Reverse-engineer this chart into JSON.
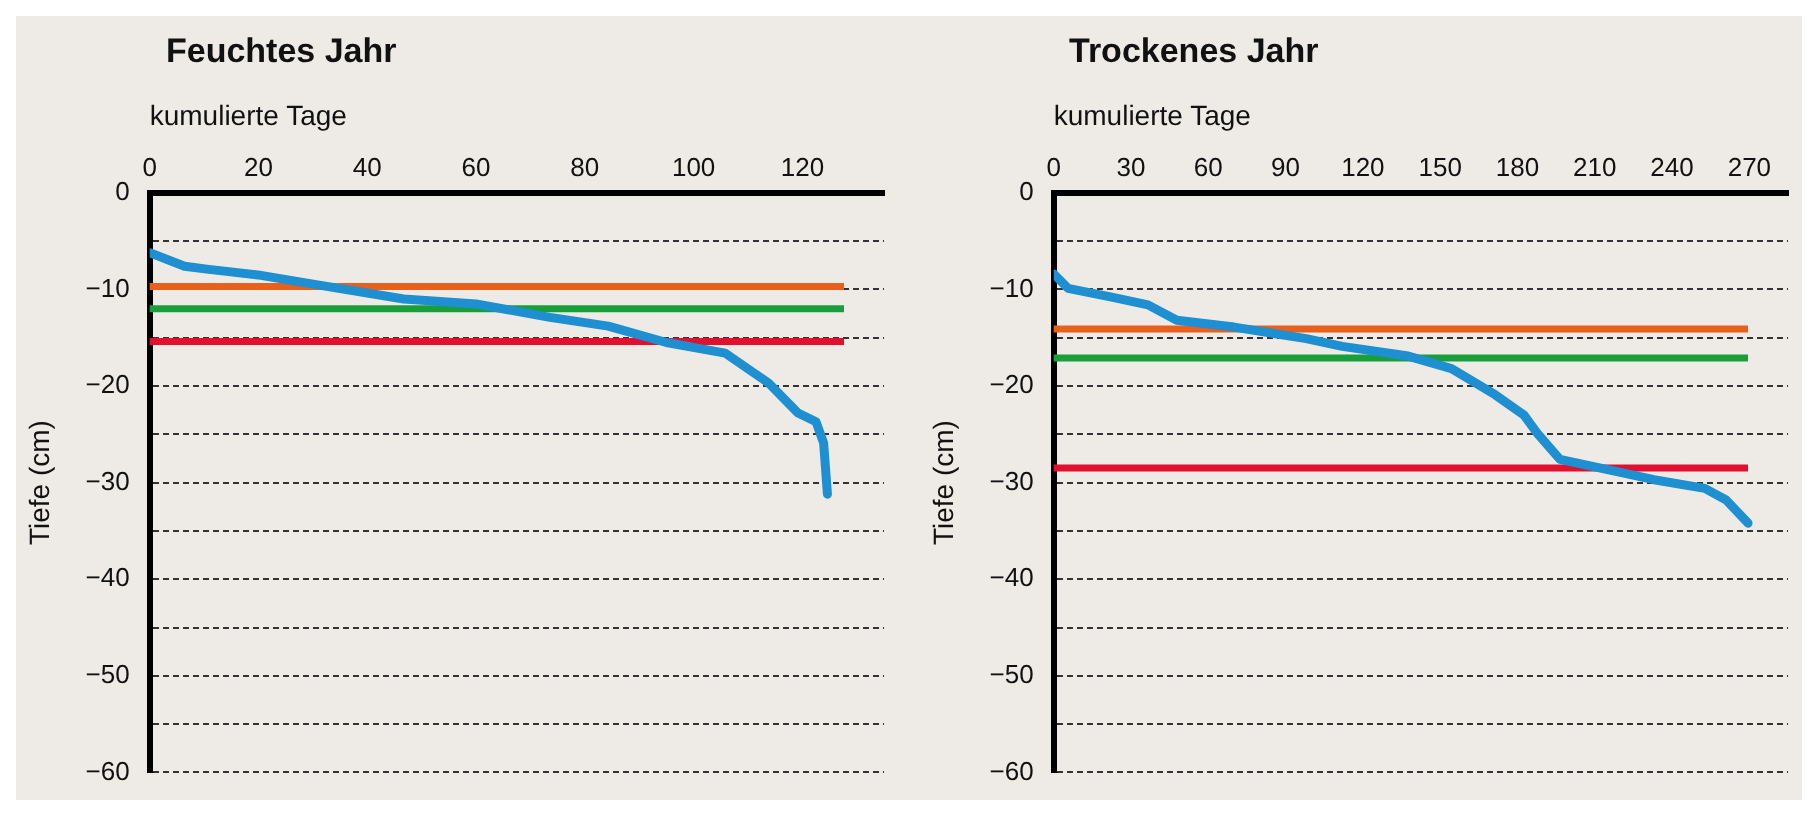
{
  "chart_data": [
    {
      "type": "line",
      "title": "Feuchtes Jahr",
      "xlabel": "kumulierte Tage",
      "ylabel": "Tiefe (cm)",
      "xlim": [
        0,
        135
      ],
      "xticks": [
        0,
        20,
        40,
        60,
        80,
        100,
        120
      ],
      "ylim": [
        -60,
        0
      ],
      "yticks": [
        0,
        {
          "value": -5,
          "label": null
        },
        -10,
        {
          "value": -15,
          "label": null
        },
        -20,
        {
          "value": -25,
          "label": null
        },
        -30,
        {
          "value": -35,
          "label": null
        },
        -40,
        {
          "value": -45,
          "label": null
        },
        -50,
        {
          "value": -55,
          "label": null
        },
        -60
      ],
      "grid": "y",
      "marker": "none",
      "line_style": "solid",
      "legend": false,
      "series": [
        {
          "color": "#1e8fd0",
          "x": [
            0,
            6.4,
            10.5,
            19.9,
            30.6,
            46.7,
            60,
            73.6,
            84.3,
            95,
            105.8,
            113.8,
            119.2,
            122.5,
            123.9,
            124.6
          ],
          "values": [
            -6.2,
            -7.6,
            -7.9,
            -8.5,
            -9.5,
            -11,
            -11.5,
            -12.9,
            -13.8,
            -15.5,
            -16.6,
            -19.7,
            -22.8,
            -23.7,
            -25.9,
            -31.2
          ]
        }
      ],
      "ref_lines": [
        {
          "axis": "y",
          "value": -9.7,
          "color": "#e8601c"
        },
        {
          "axis": "y",
          "value": -12,
          "color": "#1a9e3a"
        },
        {
          "axis": "y",
          "value": -15.4,
          "color": "#e0102e"
        }
      ]
    },
    {
      "type": "line",
      "title": "Trockenes Jahr",
      "xlabel": "kumulierte Tage",
      "ylabel": "Tiefe (cm)",
      "xlim": [
        0,
        285
      ],
      "xticks": [
        0,
        30,
        60,
        90,
        120,
        150,
        180,
        210,
        240,
        270
      ],
      "ylim": [
        -60,
        0
      ],
      "yticks": [
        0,
        {
          "value": -5,
          "label": null
        },
        -10,
        {
          "value": -15,
          "label": null
        },
        -20,
        {
          "value": -25,
          "label": null
        },
        -30,
        {
          "value": -35,
          "label": null
        },
        -40,
        {
          "value": -45,
          "label": null
        },
        -50,
        {
          "value": -55,
          "label": null
        },
        -60
      ],
      "grid": "y",
      "marker": "none",
      "line_style": "solid",
      "legend": false,
      "series": [
        {
          "color": "#1e8fd0",
          "x": [
            0,
            5.6,
            22.5,
            36.6,
            47.8,
            70,
            98,
            112,
            137.6,
            154.4,
            171.3,
            182.5,
            188,
            196.5,
            210.5,
            233,
            252.7,
            261,
            269.5
          ],
          "values": [
            -8.4,
            -9.9,
            -10.8,
            -11.6,
            -13.2,
            -13.9,
            -15.1,
            -15.9,
            -16.9,
            -18.2,
            -20.9,
            -23,
            -25,
            -27.6,
            -28.4,
            -29.7,
            -30.6,
            -31.8,
            -34.2
          ]
        }
      ],
      "ref_lines": [
        {
          "axis": "y",
          "value": -14.1,
          "color": "#e8601c"
        },
        {
          "axis": "y",
          "value": -17.1,
          "color": "#1a9e3a"
        },
        {
          "axis": "y",
          "value": -28.5,
          "color": "#e0102e"
        }
      ]
    }
  ]
}
